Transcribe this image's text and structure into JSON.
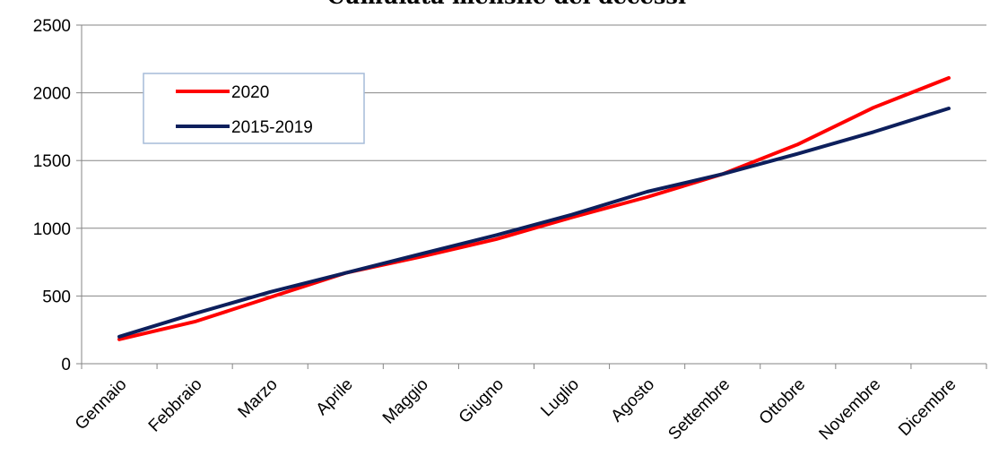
{
  "chart_data": {
    "type": "line",
    "title": "Cumulata mensile dei decessi",
    "xlabel": "",
    "ylabel": "",
    "categories": [
      "Gennaio",
      "Febbraio",
      "Marzo",
      "Aprile",
      "Maggio",
      "Giugno",
      "Luglio",
      "Agosto",
      "Settembre",
      "Ottobre",
      "Novembre",
      "Dicembre"
    ],
    "ylim": [
      0,
      2500
    ],
    "yticks": [
      "0",
      "500",
      "1000",
      "1500",
      "2000",
      "2500"
    ],
    "grid": true,
    "legend_position": "top-left",
    "series": [
      {
        "name": "2020",
        "color": "#ff0000",
        "values": [
          180,
          310,
          490,
          670,
          790,
          920,
          1080,
          1230,
          1400,
          1620,
          1890,
          2110
        ]
      },
      {
        "name": "2015-2019",
        "color": "#0d1f5c",
        "values": [
          200,
          370,
          530,
          670,
          810,
          950,
          1100,
          1270,
          1400,
          1550,
          1710,
          1885
        ]
      }
    ]
  }
}
